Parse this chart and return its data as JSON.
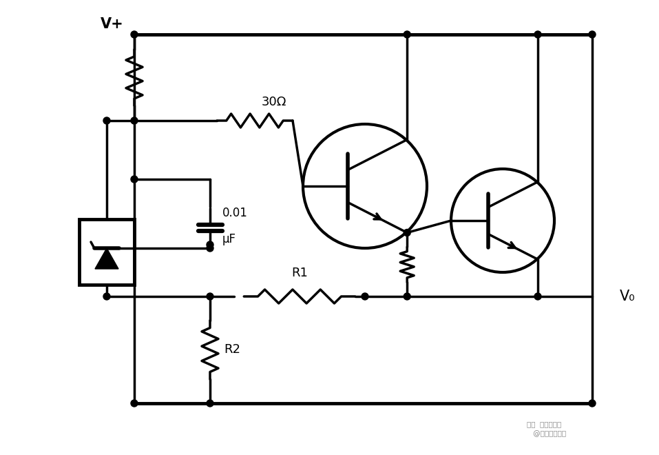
{
  "bg_color": "#ffffff",
  "line_color": "#000000",
  "lw": 2.5,
  "lw_thick": 3.5,
  "fig_width": 9.57,
  "fig_height": 6.6,
  "dpi": 100,
  "labels": {
    "vplus": "V+",
    "vout": "V₀",
    "r30": "30Ω",
    "cap_line1": "0.01",
    "cap_line2": "μF",
    "r1": "R1",
    "r2": "R2"
  },
  "watermark_line1": "头条  电路一通通",
  "watermark_line2": "     @李工次元器件"
}
